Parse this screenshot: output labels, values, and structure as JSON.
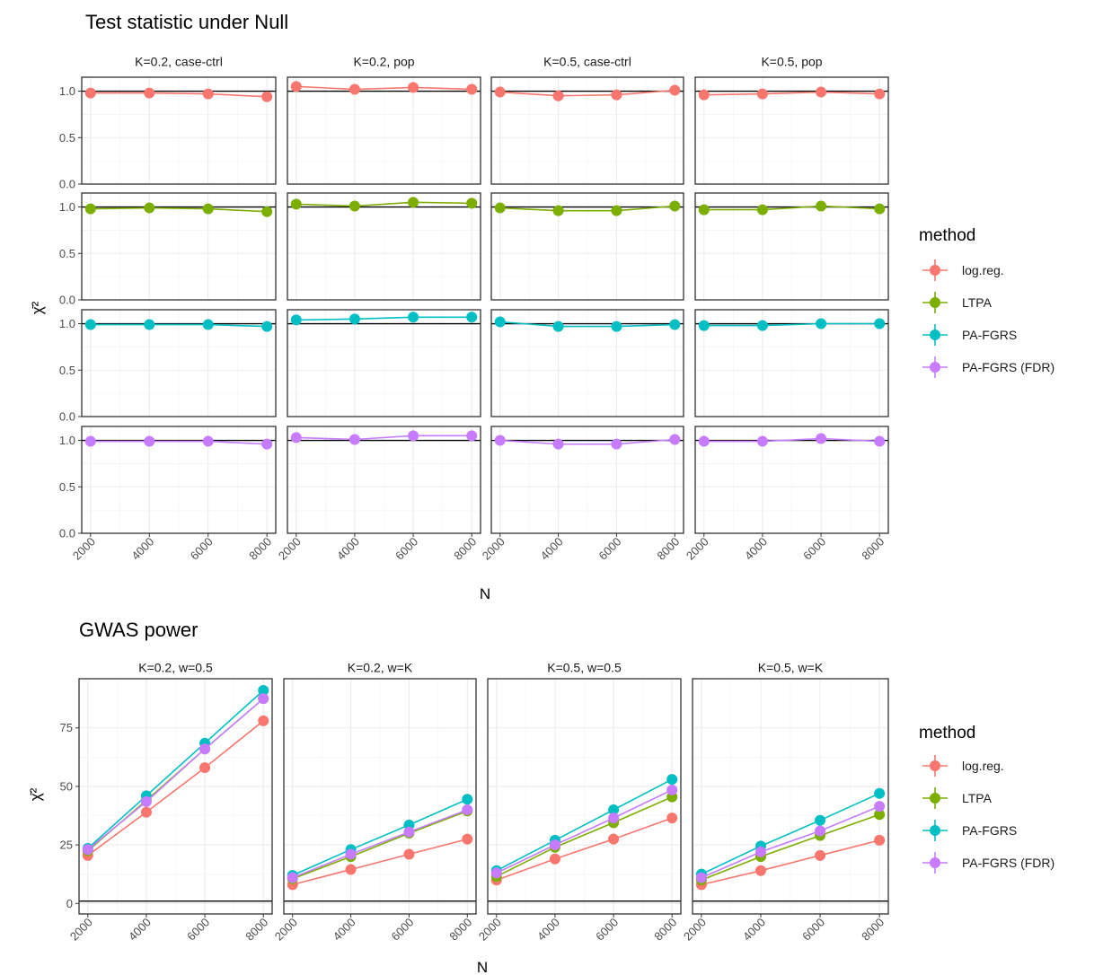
{
  "chart_data": [
    {
      "type": "line",
      "title": "Test statistic under Null",
      "xlabel": "N",
      "ylabel": "χ̄²",
      "x": [
        2000,
        4000,
        6000,
        8000
      ],
      "ylim": [
        0,
        1.15
      ],
      "yticks": [
        0.0,
        0.5,
        1.0
      ],
      "ytick_labels": [
        "0.0",
        "0.5",
        "1.0"
      ],
      "xticks": [
        2000,
        4000,
        6000,
        8000
      ],
      "xtick_labels": [
        "2000",
        "4000",
        "6000",
        "8000"
      ],
      "reference_line": 1.0,
      "facet_columns": [
        "K=0.2, case-ctrl",
        "K=0.2, pop",
        "K=0.5, case-ctrl",
        "K=0.5, pop"
      ],
      "facet_rows": [
        "log.reg.",
        "LTPA",
        "PA-FGRS",
        "PA-FGRS (FDR)"
      ],
      "series": [
        {
          "name": "log.reg.",
          "panels": [
            [
              0.98,
              0.98,
              0.97,
              0.94
            ],
            [
              1.05,
              1.02,
              1.04,
              1.02
            ],
            [
              0.99,
              0.95,
              0.96,
              1.01
            ],
            [
              0.96,
              0.97,
              0.99,
              0.97
            ]
          ]
        },
        {
          "name": "LTPA",
          "panels": [
            [
              0.98,
              0.99,
              0.98,
              0.95
            ],
            [
              1.03,
              1.01,
              1.05,
              1.04
            ],
            [
              0.99,
              0.96,
              0.96,
              1.01
            ],
            [
              0.97,
              0.97,
              1.01,
              0.98
            ]
          ]
        },
        {
          "name": "PA-FGRS",
          "panels": [
            [
              0.99,
              0.99,
              0.99,
              0.97
            ],
            [
              1.04,
              1.05,
              1.07,
              1.07
            ],
            [
              1.02,
              0.97,
              0.97,
              0.99
            ],
            [
              0.98,
              0.98,
              1.0,
              1.0
            ]
          ]
        },
        {
          "name": "PA-FGRS (FDR)",
          "panels": [
            [
              0.99,
              0.99,
              0.99,
              0.96
            ],
            [
              1.03,
              1.01,
              1.05,
              1.05
            ],
            [
              1.0,
              0.96,
              0.96,
              1.01
            ],
            [
              0.99,
              0.99,
              1.02,
              0.99
            ]
          ]
        }
      ],
      "legend": {
        "title": "method",
        "position": "right"
      },
      "grid": true
    },
    {
      "type": "line",
      "title": "GWAS power",
      "xlabel": "N",
      "ylabel": "χ̄²",
      "x": [
        2000,
        4000,
        6000,
        8000
      ],
      "ylim": [
        -4.5,
        96
      ],
      "yticks": [
        0,
        25,
        50,
        75
      ],
      "ytick_labels": [
        "0",
        "25",
        "50",
        "75"
      ],
      "xticks": [
        2000,
        4000,
        6000,
        8000
      ],
      "xtick_labels": [
        "2000",
        "4000",
        "6000",
        "8000"
      ],
      "reference_line": 1.0,
      "facet_columns": [
        "K=0.2, w=0.5",
        "K=0.2, w=K",
        "K=0.5, w=0.5",
        "K=0.5, w=K"
      ],
      "series": [
        {
          "name": "log.reg.",
          "panels": [
            [
              20.5,
              39,
              58,
              78
            ],
            [
              8,
              14.5,
              21,
              27.5
            ],
            [
              10,
              19,
              27.5,
              36.5
            ],
            [
              8,
              14,
              20.5,
              27
            ]
          ]
        },
        {
          "name": "LTPA",
          "panels": [
            [
              22.5,
              44,
              66,
              87.5
            ],
            [
              10.5,
              20,
              30,
              39.5
            ],
            [
              11.5,
              24,
              34.5,
              45.5
            ],
            [
              10,
              20,
              29,
              38
            ]
          ]
        },
        {
          "name": "PA-FGRS",
          "panels": [
            [
              23.5,
              46,
              68.5,
              91
            ],
            [
              12,
              23,
              33.5,
              44.5
            ],
            [
              14,
              27,
              40,
              53
            ],
            [
              12.5,
              24.5,
              35.5,
              47
            ]
          ]
        },
        {
          "name": "PA-FGRS (FDR)",
          "panels": [
            [
              23,
              43.5,
              66,
              87.5
            ],
            [
              11,
              21,
              30.5,
              40
            ],
            [
              13,
              25,
              36.5,
              48.5
            ],
            [
              11,
              22,
              31,
              41.5
            ]
          ]
        }
      ],
      "legend": {
        "title": "method",
        "position": "right"
      },
      "grid": true
    }
  ],
  "colors": {
    "log.reg.": "#F8766D",
    "LTPA": "#7CAE00",
    "PA-FGRS": "#00BFC4",
    "PA-FGRS (FDR)": "#C77CFF"
  }
}
